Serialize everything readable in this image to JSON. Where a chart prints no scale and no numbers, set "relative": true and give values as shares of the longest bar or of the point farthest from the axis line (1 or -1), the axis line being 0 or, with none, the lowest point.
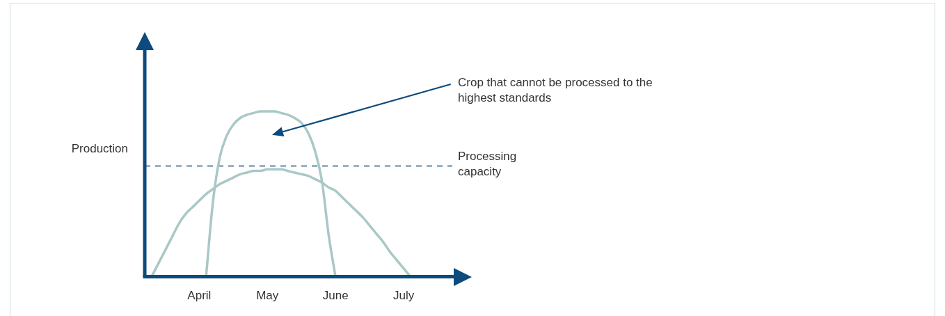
{
  "chart_data": {
    "type": "line",
    "relative": true,
    "ylabel": "Production",
    "categories": [
      null,
      null,
      null,
      null,
      null,
      null,
      null,
      null,
      "April",
      null,
      null,
      null,
      null,
      null,
      null,
      null,
      null,
      null,
      "May",
      null,
      null,
      null,
      null,
      null,
      null,
      null,
      null,
      null,
      "June",
      null,
      null,
      null,
      null,
      null,
      null,
      null,
      null,
      null,
      "July",
      null,
      null,
      null,
      null,
      null,
      null,
      null,
      null,
      null,
      null
    ],
    "series": [
      {
        "color": "#a9c8c6",
        "values": [
          null,
          0,
          0.08,
          0.16,
          0.24,
          0.32,
          0.38,
          0.42,
          0.46,
          0.5,
          0.53,
          0.56,
          0.58,
          0.6,
          0.62,
          0.63,
          0.64,
          0.64,
          0.65,
          0.65,
          0.65,
          0.64,
          0.63,
          0.62,
          0.61,
          0.59,
          0.57,
          0.54,
          0.52,
          0.48,
          0.44,
          0.4,
          0.36,
          0.31,
          0.26,
          0.21,
          0.15,
          0.1,
          0.05,
          0,
          null,
          null,
          null,
          null,
          null,
          null,
          null,
          null,
          null
        ]
      },
      {
        "color": "#a9c8c6",
        "values": [
          null,
          null,
          null,
          null,
          null,
          null,
          null,
          null,
          null,
          0,
          0.45,
          0.72,
          0.85,
          0.92,
          0.96,
          0.98,
          0.99,
          1,
          1,
          1,
          0.99,
          0.98,
          0.96,
          0.93,
          0.87,
          0.76,
          0.58,
          0.25,
          0,
          null,
          null,
          null,
          null,
          null,
          null,
          null,
          null,
          null,
          null,
          null,
          null,
          null,
          null,
          null,
          null,
          null,
          null,
          null,
          null
        ]
      }
    ],
    "ref_lines": [
      {
        "axis": "y",
        "value": 0.67,
        "label": "Processing capacity",
        "color": "#1a4f7f",
        "line_style": "dashed"
      }
    ],
    "annotations": [
      "Crop that cannot be processed to the highest standards"
    ],
    "legend": false,
    "grid": false,
    "marker": "none",
    "line_style": "solid"
  }
}
